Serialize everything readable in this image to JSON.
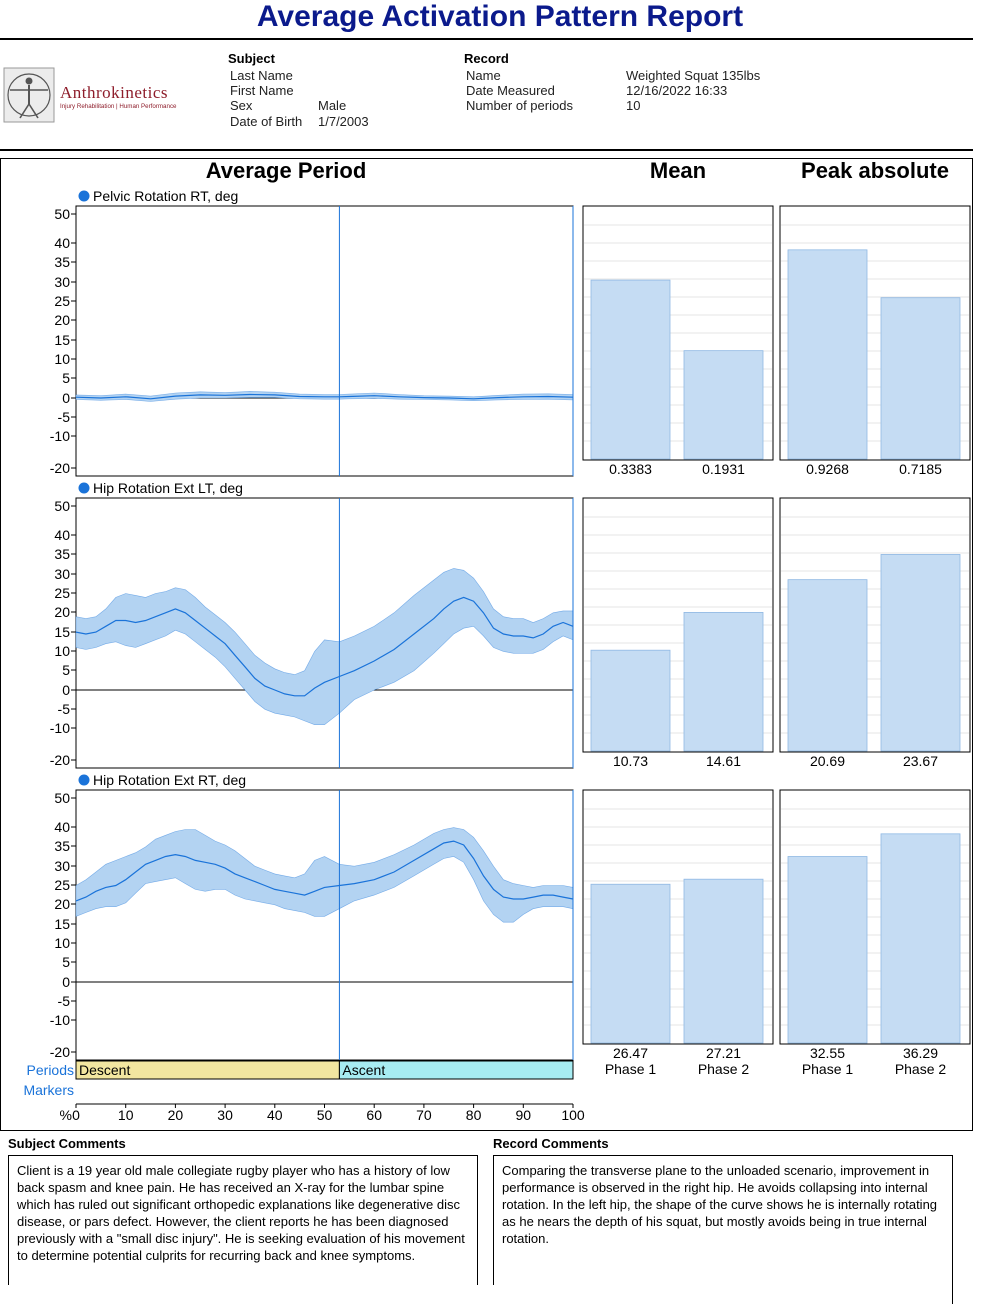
{
  "title": "Average Activation Pattern Report",
  "logo": {
    "brand": "Anthrokinetics",
    "tagline": "Injury Rehabilitation | Human Performance"
  },
  "subject": {
    "heading": "Subject",
    "last_name_label": "Last Name",
    "first_name_label": "First Name",
    "sex_label": "Sex",
    "sex": "Male",
    "dob_label": "Date of Birth",
    "dob": "1/7/2003"
  },
  "record": {
    "heading": "Record",
    "name_label": "Name",
    "name": "Weighted Squat 135lbs",
    "date_label": "Date Measured",
    "date": "12/16/2022 16:33",
    "periods_label": "Number of periods",
    "periods": "10"
  },
  "headings": {
    "average_period": "Average Period",
    "mean": "Mean",
    "peak": "Peak absolute"
  },
  "colors": {
    "line": "#1a73d9",
    "band": "#b3d3f2",
    "bar": "#c5dcf3",
    "descent": "#f2e6a0",
    "ascent": "#a7ecf2",
    "title": "#0b1a8c"
  },
  "chart_data": [
    {
      "type": "line",
      "title": "Pelvic Rotation RT, deg",
      "xlabel": "%",
      "xlim": [
        0,
        100
      ],
      "ylim": [
        -20,
        50
      ],
      "yticks": [
        "50",
        "40",
        "35",
        "30",
        "25",
        "20",
        "15",
        "10",
        "5",
        "0",
        "-5",
        "-10",
        "-20"
      ],
      "divider_x": 53,
      "x": [
        0,
        5,
        10,
        15,
        20,
        25,
        30,
        35,
        40,
        45,
        50,
        53,
        55,
        60,
        65,
        70,
        75,
        80,
        85,
        90,
        95,
        100
      ],
      "mean": [
        0.2,
        0.0,
        0.3,
        -0.2,
        0.5,
        0.8,
        0.7,
        0.9,
        0.8,
        0.4,
        0.3,
        0.3,
        0.4,
        0.6,
        0.3,
        0.1,
        0.0,
        -0.2,
        0.1,
        0.3,
        0.4,
        0.2
      ],
      "upper": [
        0.8,
        0.6,
        1.0,
        0.5,
        1.3,
        1.6,
        1.4,
        1.7,
        1.5,
        1.0,
        0.9,
        0.9,
        1.0,
        1.3,
        0.9,
        0.6,
        0.5,
        0.3,
        0.7,
        1.0,
        1.1,
        0.9
      ],
      "lower": [
        -0.4,
        -0.6,
        -0.4,
        -0.9,
        -0.3,
        0.0,
        0.0,
        0.1,
        0.1,
        -0.2,
        -0.3,
        -0.3,
        -0.2,
        -0.1,
        -0.3,
        -0.4,
        -0.5,
        -0.7,
        -0.5,
        -0.4,
        -0.3,
        -0.5
      ],
      "mean_bar": {
        "type": "bar",
        "categories": [
          "Phase 1",
          "Phase 2"
        ],
        "values": [
          0.3383,
          0.1931
        ],
        "labels": [
          "0.3383",
          "0.1931"
        ],
        "bar_levels": [
          0.71,
          0.43
        ],
        "show_categories": false
      },
      "peak_bar": {
        "type": "bar",
        "categories": [
          "Phase 1",
          "Phase 2"
        ],
        "values": [
          0.9268,
          0.7185
        ],
        "labels": [
          "0.9268",
          "0.7185"
        ],
        "bar_levels": [
          0.83,
          0.64
        ],
        "show_categories": false
      }
    },
    {
      "type": "line",
      "title": "Hip Rotation Ext LT, deg",
      "xlabel": "%",
      "xlim": [
        0,
        100
      ],
      "ylim": [
        -20,
        50
      ],
      "yticks": [
        "50",
        "40",
        "35",
        "30",
        "25",
        "20",
        "15",
        "10",
        "5",
        "0",
        "-5",
        "-10",
        "-20"
      ],
      "divider_x": 53,
      "x": [
        0,
        2,
        4,
        6,
        8,
        10,
        12,
        14,
        16,
        18,
        20,
        22,
        24,
        26,
        28,
        30,
        32,
        34,
        36,
        38,
        40,
        42,
        44,
        46,
        48,
        50,
        53,
        56,
        60,
        64,
        68,
        72,
        74,
        76,
        78,
        80,
        82,
        84,
        86,
        88,
        90,
        92,
        94,
        96,
        98,
        100
      ],
      "mean": [
        15,
        14.5,
        15,
        16.5,
        18,
        18,
        17.5,
        18,
        19,
        20,
        21,
        20,
        18,
        16,
        14,
        12,
        9,
        6,
        3,
        1,
        0,
        -1,
        -1.5,
        -1.5,
        0.5,
        2,
        3.5,
        5,
        7.5,
        10.5,
        14.5,
        18.5,
        21,
        23,
        24,
        23,
        20,
        16,
        14.5,
        14,
        14,
        13.5,
        14.5,
        16.5,
        17.5,
        16.5
      ],
      "upper": [
        19,
        18.5,
        19,
        21,
        24,
        25,
        24.5,
        24,
        25,
        25.5,
        26.5,
        26,
        24,
        21.5,
        19.5,
        17.5,
        15,
        12,
        9,
        7,
        5.5,
        4.5,
        4,
        5,
        10,
        13,
        12.5,
        14,
        16.5,
        20,
        24.5,
        28.5,
        30.5,
        31.5,
        31,
        29,
        25.5,
        21,
        19,
        18.5,
        18.5,
        17.5,
        18.5,
        20,
        20.5,
        20.5
      ],
      "lower": [
        11,
        10.5,
        11,
        12,
        12.5,
        11.5,
        11,
        12,
        13,
        14,
        15.5,
        14.5,
        12.5,
        10.5,
        8.5,
        6,
        3,
        0,
        -3,
        -5,
        -6,
        -6.5,
        -7,
        -8,
        -9,
        -9,
        -6,
        -2.5,
        0,
        2,
        5,
        9.5,
        12,
        14.5,
        16,
        16.5,
        14,
        11,
        10,
        9.5,
        9.5,
        9.5,
        10.5,
        12.5,
        14,
        13
      ],
      "mean_bar": {
        "type": "bar",
        "categories": [
          "Phase 1",
          "Phase 2"
        ],
        "values": [
          10.73,
          14.61
        ],
        "labels": [
          "10.73",
          "14.61"
        ],
        "bar_levels": [
          0.4,
          0.55
        ],
        "show_categories": false
      },
      "peak_bar": {
        "type": "bar",
        "categories": [
          "Phase 1",
          "Phase 2"
        ],
        "values": [
          20.69,
          23.67
        ],
        "labels": [
          "20.69",
          "23.67"
        ],
        "bar_levels": [
          0.68,
          0.78
        ],
        "show_categories": false
      }
    },
    {
      "type": "line",
      "title": "Hip Rotation Ext RT, deg",
      "xlabel": "%",
      "xlim": [
        0,
        100
      ],
      "ylim": [
        -20,
        50
      ],
      "yticks": [
        "50",
        "40",
        "35",
        "30",
        "25",
        "20",
        "15",
        "10",
        "5",
        "0",
        "-5",
        "-10",
        "-20"
      ],
      "divider_x": 53,
      "x": [
        0,
        2,
        4,
        6,
        8,
        10,
        12,
        14,
        16,
        18,
        20,
        22,
        24,
        26,
        28,
        30,
        32,
        34,
        36,
        38,
        40,
        42,
        44,
        46,
        48,
        50,
        53,
        56,
        60,
        64,
        68,
        72,
        74,
        76,
        78,
        80,
        82,
        84,
        86,
        88,
        90,
        92,
        94,
        96,
        98,
        100
      ],
      "mean": [
        21,
        22,
        23.5,
        24.5,
        25,
        26.5,
        28.5,
        30.5,
        31.5,
        32.5,
        33,
        32.5,
        31.5,
        31,
        30.5,
        29.5,
        28,
        27,
        26,
        25,
        24,
        23.5,
        23,
        22.5,
        23.5,
        24.5,
        25,
        25.5,
        26.5,
        28.5,
        31.5,
        34.5,
        36,
        36.5,
        35.5,
        32,
        27.5,
        24,
        22,
        21.5,
        21.5,
        22,
        22.5,
        22.5,
        22,
        21.5
      ],
      "upper": [
        25,
        26.5,
        28.5,
        30.5,
        31.5,
        32.5,
        33.5,
        35,
        37,
        38,
        39,
        39.5,
        39.5,
        38,
        36.5,
        35.5,
        34,
        32,
        30,
        29,
        28,
        27.5,
        27,
        28,
        31.5,
        32.5,
        30.5,
        30,
        31,
        33,
        35.5,
        38.5,
        39.5,
        40,
        39.5,
        37.5,
        34,
        30,
        26.5,
        25.5,
        25,
        24.5,
        25,
        25,
        25,
        24.5
      ],
      "lower": [
        17,
        18,
        19,
        19.5,
        19.5,
        20.5,
        23,
        25.5,
        26,
        26.5,
        27,
        25.5,
        24,
        23.5,
        24,
        24,
        22.5,
        21.5,
        21,
        20.5,
        20,
        19,
        18.5,
        18,
        17,
        17,
        19,
        21,
        22.5,
        24.5,
        27.5,
        30.5,
        32,
        32.5,
        31,
        26.5,
        21,
        17.5,
        15.5,
        15.5,
        17.5,
        19,
        19.5,
        19.5,
        19.5,
        19
      ],
      "mean_bar": {
        "type": "bar",
        "categories": [
          "Phase 1",
          "Phase 2"
        ],
        "values": [
          26.47,
          27.21
        ],
        "labels": [
          "26.47",
          "27.21"
        ],
        "bar_levels": [
          0.63,
          0.65
        ],
        "show_categories": true
      },
      "peak_bar": {
        "type": "bar",
        "categories": [
          "Phase 1",
          "Phase 2"
        ],
        "values": [
          32.55,
          36.29
        ],
        "labels": [
          "32.55",
          "36.29"
        ],
        "bar_levels": [
          0.74,
          0.83
        ],
        "show_categories": true
      }
    }
  ],
  "axis": {
    "unit_label": "%",
    "xticks": [
      "0",
      "10",
      "20",
      "30",
      "40",
      "50",
      "60",
      "70",
      "80",
      "90",
      "100"
    ]
  },
  "periods": {
    "label": "Periods",
    "descent": "Descent",
    "ascent": "Ascent"
  },
  "markers": {
    "label": "Markers"
  },
  "comments": {
    "subject_title": "Subject Comments",
    "subject_text": "Client is a 19 year old male collegiate rugby player who has a history of low back spasm and knee pain. He has received an X-ray for the lumbar spine which has ruled out significant orthopedic explanations like degenerative disc disease, or pars defect. However, the client reports he has been diagnosed previously with a \"small disc injury\". He is seeking evaluation of his movement to determine potential culprits for recurring back and knee symptoms.",
    "record_title": "Record Comments",
    "record_text": "Comparing the transverse plane to the unloaded scenario, improvement in performance is observed in the right hip. He avoids collapsing into internal rotation. In the left hip, the shape of the curve shows he is internally rotating as he nears the depth of his squat, but mostly avoids being in true internal rotation."
  }
}
